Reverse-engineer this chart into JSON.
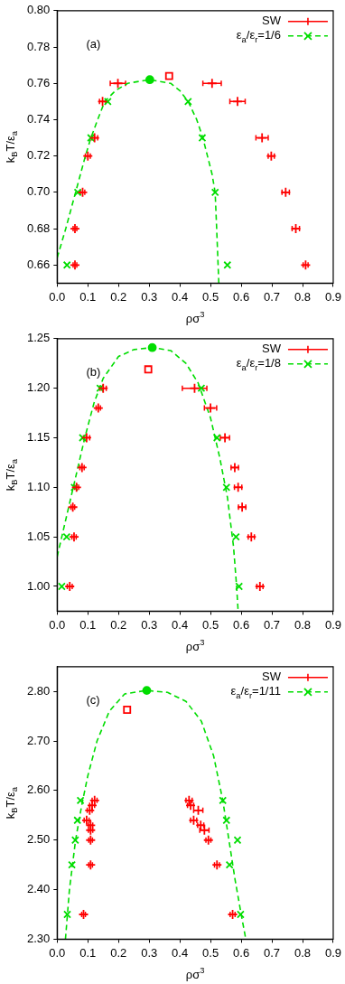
{
  "chart_data": [
    {
      "type": "scatter",
      "xlabel": "ρσ$^{3}$",
      "ylabel": "k$_{B}$T/ε$_{a}$",
      "annotations": [
        "(a)"
      ],
      "legend": "top right",
      "xlim": [
        0,
        0.9
      ],
      "ylim": [
        0.65,
        0.8
      ],
      "xticks": [
        {
          "value": 0,
          "label": "0.0"
        },
        {
          "value": 0.1,
          "label": "0.1"
        },
        {
          "value": 0.2,
          "label": "0.2"
        },
        {
          "value": 0.3,
          "label": "0.3"
        },
        {
          "value": 0.4,
          "label": "0.4"
        },
        {
          "value": 0.5,
          "label": "0.5"
        },
        {
          "value": 0.6,
          "label": "0.6"
        },
        {
          "value": 0.7,
          "label": "0.7"
        },
        {
          "value": 0.8,
          "label": "0.8"
        },
        {
          "value": 0.9,
          "label": "0.9"
        }
      ],
      "yticks": [
        0.66,
        0.68,
        {
          "value": 0.7,
          "label": "0.70"
        },
        0.72,
        0.74,
        0.76,
        0.78,
        {
          "value": 0.8,
          "label": "0.80"
        }
      ],
      "series": [
        {
          "name": "SW",
          "type": "scatter",
          "marker": "cross",
          "color": "#ff0000",
          "x": [
            0.198,
            0.505,
            0.148,
            0.588,
            0.122,
            0.668,
            0.1,
            0.698,
            0.083,
            0.745,
            0.058,
            0.778,
            0.058,
            0.81
          ],
          "values": [
            0.76,
            0.76,
            0.75,
            0.75,
            0.73,
            0.73,
            0.72,
            0.72,
            0.7,
            0.7,
            0.68,
            0.68,
            0.66,
            0.66
          ],
          "xerrors": [
            0.025,
            0.03,
            0.01,
            0.025,
            0.01,
            0.02,
            0.008,
            0.01,
            0.007,
            0.012,
            0.006,
            0.012,
            0.006,
            0.008
          ]
        },
        {
          "name": "ε$_{a}$/ε$_{r}$=1/6",
          "type": "scatter",
          "marker": "cross",
          "line_style": "dashed",
          "color": "#00dd00",
          "x": [
            0.032,
            0.067,
            0.11,
            0.165,
            0.427,
            0.473,
            0.515,
            0.555
          ],
          "values": [
            0.66,
            0.7,
            0.73,
            0.75,
            0.75,
            0.73,
            0.7,
            0.66
          ]
        },
        {
          "type": "line",
          "marker": "none",
          "line_style": "dashed",
          "color": "#00dd00",
          "x": [
            0,
            0.028,
            0.06,
            0.092,
            0.11,
            0.132,
            0.155,
            0.19,
            0.23,
            0.3,
            0.37,
            0.4,
            0.427,
            0.455,
            0.475,
            0.49,
            0.505,
            0.515,
            0.52,
            0.527
          ],
          "values": [
            0.664,
            0.68,
            0.7,
            0.72,
            0.73,
            0.74,
            0.75,
            0.756,
            0.76,
            0.762,
            0.76,
            0.756,
            0.75,
            0.74,
            0.73,
            0.72,
            0.71,
            0.7,
            0.68,
            0.65
          ]
        },
        {
          "type": "scatter",
          "marker": "circle",
          "color": "#00dd00",
          "x": [
            0.302
          ],
          "values": [
            0.762
          ]
        },
        {
          "type": "scatter",
          "marker": "square",
          "color": "#ff0000",
          "x": [
            0.365
          ],
          "values": [
            0.764
          ]
        }
      ]
    },
    {
      "type": "scatter",
      "xlabel": "ρσ$^{3}$",
      "ylabel": "k$_{B}$T/ε$_{a}$",
      "annotations": [
        "(b)"
      ],
      "legend": "top right",
      "xlim": [
        0,
        0.9
      ],
      "ylim": [
        0.975,
        1.25
      ],
      "xticks": [
        {
          "value": 0,
          "label": "0.0"
        },
        {
          "value": 0.1,
          "label": "0.1"
        },
        {
          "value": 0.2,
          "label": "0.2"
        },
        {
          "value": 0.3,
          "label": "0.3"
        },
        {
          "value": 0.4,
          "label": "0.4"
        },
        {
          "value": 0.5,
          "label": "0.5"
        },
        {
          "value": 0.6,
          "label": "0.6"
        },
        {
          "value": 0.7,
          "label": "0.7"
        },
        {
          "value": 0.8,
          "label": "0.8"
        },
        {
          "value": 0.9,
          "label": "0.9"
        }
      ],
      "yticks": [
        {
          "value": 1,
          "label": "1.00"
        },
        1.05,
        {
          "value": 1.1,
          "label": "1.10"
        },
        1.15,
        {
          "value": 1.2,
          "label": "1.20"
        },
        1.25
      ],
      "series": [
        {
          "name": "SW",
          "type": "scatter",
          "marker": "cross",
          "color": "#ff0000",
          "x": [
            0.15,
            0.448,
            0.134,
            0.5,
            0.096,
            0.547,
            0.081,
            0.579,
            0.063,
            0.59,
            0.051,
            0.603,
            0.055,
            0.633,
            0.041,
            0.661
          ],
          "values": [
            1.2,
            1.2,
            1.18,
            1.18,
            1.15,
            1.15,
            1.12,
            1.12,
            1.1,
            1.1,
            1.08,
            1.08,
            1.05,
            1.05,
            1,
            1
          ],
          "xerrors": [
            0.01,
            0.04,
            0.007,
            0.02,
            0.01,
            0.015,
            0.007,
            0.012,
            0.007,
            0.012,
            0.006,
            0.012,
            0.007,
            0.01,
            0.008,
            0.01
          ]
        },
        {
          "name": "ε$_{a}$/ε$_{r}$=1/8",
          "type": "scatter",
          "marker": "cross",
          "line_style": "dashed",
          "color": "#00dd00",
          "x": [
            0.015,
            0.031,
            0.056,
            0.083,
            0.14,
            0.47,
            0.521,
            0.552,
            0.583,
            0.593
          ],
          "values": [
            1,
            1.05,
            1.1,
            1.15,
            1.2,
            1.2,
            1.15,
            1.1,
            1.05,
            1
          ]
        },
        {
          "type": "line",
          "marker": "none",
          "line_style": "dashed",
          "color": "#00dd00",
          "x": [
            0,
            0.03,
            0.06,
            0.09,
            0.12,
            0.15,
            0.2,
            0.25,
            0.31,
            0.37,
            0.42,
            0.46,
            0.5,
            0.53,
            0.555,
            0.575,
            0.585,
            0.59
          ],
          "values": [
            1.03,
            1.07,
            1.11,
            1.15,
            1.185,
            1.21,
            1.232,
            1.239,
            1.241,
            1.238,
            1.225,
            1.205,
            1.17,
            1.13,
            1.09,
            1.04,
            1,
            0.975
          ]
        },
        {
          "type": "scatter",
          "marker": "circle",
          "color": "#00dd00",
          "x": [
            0.31
          ],
          "values": [
            1.241
          ]
        },
        {
          "type": "scatter",
          "marker": "square",
          "color": "#ff0000",
          "x": [
            0.297
          ],
          "values": [
            1.219
          ]
        }
      ]
    },
    {
      "type": "scatter",
      "xlabel": "ρσ$^{3}$",
      "ylabel": "k$_{B}$T/ε$_{a}$",
      "annotations": [
        "(c)"
      ],
      "legend": "top right",
      "xlim": [
        0,
        0.9
      ],
      "ylim": [
        2.3,
        2.85
      ],
      "xticks": [
        {
          "value": 0,
          "label": "0.0"
        },
        {
          "value": 0.1,
          "label": "0.1"
        },
        {
          "value": 0.2,
          "label": "0.2"
        },
        {
          "value": 0.3,
          "label": "0.3"
        },
        {
          "value": 0.4,
          "label": "0.4"
        },
        {
          "value": 0.5,
          "label": "0.5"
        },
        {
          "value": 0.6,
          "label": "0.6"
        },
        {
          "value": 0.7,
          "label": "0.7"
        },
        {
          "value": 0.8,
          "label": "0.8"
        },
        {
          "value": 0.9,
          "label": "0.9"
        }
      ],
      "yticks": [
        {
          "value": 2.3,
          "label": "2.30"
        },
        {
          "value": 2.4,
          "label": "2.40"
        },
        {
          "value": 2.5,
          "label": "2.50"
        },
        {
          "value": 2.6,
          "label": "2.60"
        },
        {
          "value": 2.7,
          "label": "2.70"
        },
        {
          "value": 2.8,
          "label": "2.80"
        }
      ],
      "series": [
        {
          "name": "SW",
          "type": "scatter",
          "marker": "cross",
          "color": "#ff0000",
          "x": [
            0.122,
            0.114,
            0.106,
            0.096,
            0.109,
            0.109,
            0.109,
            0.109,
            0.086,
            0.43,
            0.435,
            0.46,
            0.445,
            0.468,
            0.48,
            0.493,
            0.521,
            0.572
          ],
          "values": [
            2.58,
            2.57,
            2.56,
            2.54,
            2.53,
            2.52,
            2.5,
            2.45,
            2.35,
            2.58,
            2.57,
            2.56,
            2.54,
            2.53,
            2.52,
            2.5,
            2.45,
            2.35
          ],
          "xerrors": [
            0.008,
            0.008,
            0.008,
            0.008,
            0.007,
            0.007,
            0.006,
            0.006,
            0.006,
            0.01,
            0.01,
            0.015,
            0.01,
            0.01,
            0.015,
            0.008,
            0.008,
            0.008
          ]
        },
        {
          "name": "ε$_{a}$/ε$_{r}$=1/11",
          "type": "scatter",
          "marker": "cross",
          "line_style": "dashed",
          "color": "#00dd00",
          "x": [
            0.033,
            0.048,
            0.059,
            0.066,
            0.076,
            0.54,
            0.552,
            0.588,
            0.562,
            0.598
          ],
          "values": [
            2.35,
            2.45,
            2.5,
            2.54,
            2.58,
            2.58,
            2.54,
            2.5,
            2.45,
            2.35
          ]
        },
        {
          "type": "line",
          "marker": "none",
          "line_style": "dashed",
          "color": "#00dd00",
          "x": [
            0.027,
            0.04,
            0.06,
            0.08,
            0.1,
            0.13,
            0.17,
            0.22,
            0.29,
            0.36,
            0.42,
            0.47,
            0.51,
            0.54,
            0.56,
            0.58,
            0.6,
            0.615
          ],
          "values": [
            2.3,
            2.4,
            2.5,
            2.57,
            2.63,
            2.7,
            2.76,
            2.795,
            2.802,
            2.798,
            2.78,
            2.74,
            2.67,
            2.58,
            2.5,
            2.42,
            2.35,
            2.3
          ]
        },
        {
          "type": "scatter",
          "marker": "circle",
          "color": "#00dd00",
          "x": [
            0.292
          ],
          "values": [
            2.802
          ]
        },
        {
          "type": "scatter",
          "marker": "square",
          "color": "#ff0000",
          "x": [
            0.228
          ],
          "values": [
            2.763
          ]
        }
      ]
    }
  ]
}
